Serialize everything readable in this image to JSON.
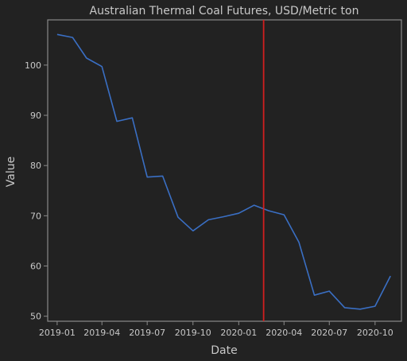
{
  "chart_data": {
    "type": "line",
    "title": "Australian Thermal Coal Futures, USD/Metric ton",
    "xlabel": "Date",
    "ylabel": "Value",
    "x": [
      "2019-01-01",
      "2019-02-01",
      "2019-03-01",
      "2019-04-01",
      "2019-05-01",
      "2019-06-01",
      "2019-07-01",
      "2019-08-01",
      "2019-09-01",
      "2019-10-01",
      "2019-11-01",
      "2019-12-01",
      "2020-01-01",
      "2020-02-01",
      "2020-03-01",
      "2020-04-01",
      "2020-05-01",
      "2020-06-01",
      "2020-07-01",
      "2020-08-01",
      "2020-09-01",
      "2020-10-01",
      "2020-11-01"
    ],
    "series": [
      {
        "values": [
          106.1,
          105.5,
          101.4,
          99.7,
          88.8,
          89.5,
          77.7,
          77.9,
          69.7,
          67.0,
          69.2,
          69.8,
          70.5,
          72.1,
          71.0,
          70.2,
          64.7,
          54.2,
          55.0,
          51.7,
          51.4,
          52.0,
          58.0
        ],
        "color": "#3a6fc4"
      }
    ],
    "xlim": [
      "2018-12-13",
      "2020-11-23"
    ],
    "ylim": [
      49,
      109
    ],
    "xticks": [
      {
        "value": "2019-01-01",
        "label": "2019-01"
      },
      {
        "value": "2019-04-01",
        "label": "2019-04"
      },
      {
        "value": "2019-07-01",
        "label": "2019-07"
      },
      {
        "value": "2019-10-01",
        "label": "2019-10"
      },
      {
        "value": "2020-01-01",
        "label": "2020-01"
      },
      {
        "value": "2020-04-01",
        "label": "2020-04"
      },
      {
        "value": "2020-07-01",
        "label": "2020-07"
      },
      {
        "value": "2020-10-01",
        "label": "2020-10"
      }
    ],
    "yticks": [
      50,
      60,
      70,
      80,
      90,
      100
    ],
    "vline": {
      "x": "2020-02-20",
      "color": "#d11f1f"
    },
    "grid": false,
    "legend": "none",
    "background": "#222222",
    "frame_color": "#8a8a8a",
    "text_color": "#c8c8c8"
  }
}
